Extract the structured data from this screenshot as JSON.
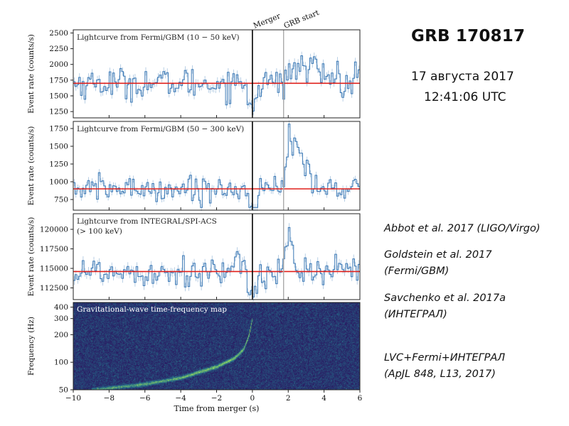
{
  "side_text": {
    "title": "GRB 170817",
    "date": "17 августа 2017",
    "time": "12:41:06 UTC",
    "references": [
      {
        "line1": "Abbot et al. 2017 (LIGO/Virgo)",
        "line2": ""
      },
      {
        "line1": "Goldstein et al. 2017",
        "line2": "(Fermi/GBM)"
      },
      {
        "line1": "Savchenko et al. 2017a",
        "line2": "(ИНТЕГРАЛ)"
      },
      {
        "line1": "LVC+Fermi+ИНТЕГРАЛ",
        "line2": "(ApJL 848, L13, 2017)"
      }
    ]
  },
  "chart_data": {
    "type": "line",
    "xlabel": "Time from merger (s)",
    "xlim": [
      -10,
      6
    ],
    "x_ticks": [
      "−10",
      "−8",
      "−6",
      "−4",
      "−2",
      "0",
      "2",
      "4",
      "6"
    ],
    "markers": [
      {
        "label": "Merger",
        "x": 0,
        "color": "#000000"
      },
      {
        "label": "GRB start",
        "x": 1.74,
        "color": "#aaaaaa"
      }
    ],
    "colors": {
      "data": "#3a78b5",
      "background_fit": "#e0201b",
      "spectrogram_low": "#2a1760",
      "spectrogram_high": "#9be35a"
    },
    "panels": [
      {
        "title": "Lightcurve from Fermi/GBM (10 − 50 keV)",
        "title2": "",
        "ylabel": "Event rate (counts/s)",
        "ylim": [
          1150,
          2550
        ],
        "y_ticks": [
          1250,
          1500,
          1750,
          2000,
          2250,
          2500
        ],
        "y_tick_labels": [
          "1250",
          "1500",
          "1750",
          "2000",
          "2250",
          "2500"
        ],
        "background": 1700,
        "noise": 120,
        "bump": {
          "start": 1.7,
          "peak": 2.5,
          "end": 4.8,
          "amplitude": 250
        }
      },
      {
        "title": "Lightcurve from Fermi/GBM (50 − 300 keV)",
        "title2": "",
        "ylabel": "Event rate (counts/s)",
        "ylim": [
          600,
          1850
        ],
        "y_ticks": [
          750,
          1000,
          1250,
          1500,
          1750
        ],
        "y_tick_labels": [
          "750",
          "1000",
          "1250",
          "1500",
          "1750"
        ],
        "background": 900,
        "noise": 90,
        "bump": {
          "start": 1.7,
          "peak": 2.0,
          "end": 3.3,
          "amplitude": 750
        }
      },
      {
        "title": "Lightcurve from INTEGRAL/SPI-ACS",
        "title2": "(> 100 keV)",
        "ylabel": "Event rate (counts/s)",
        "ylim": [
          111000,
          122000
        ],
        "y_ticks": [
          112500,
          115000,
          117500,
          120000
        ],
        "y_tick_labels": [
          "112500",
          "115000",
          "117500",
          "120000"
        ],
        "background": 114600,
        "noise": 1000,
        "bump": {
          "start": 1.6,
          "peak": 1.9,
          "end": 2.4,
          "amplitude": 4500
        }
      }
    ],
    "spectrogram": {
      "title": "Gravitational-wave time-frequency map",
      "ylabel": "Frequency (Hz)",
      "y_scale": "log",
      "ylim": [
        50,
        450
      ],
      "y_ticks": [
        50,
        100,
        200,
        300,
        400
      ],
      "y_tick_labels": [
        "50",
        "100",
        "200",
        "300",
        "400"
      ],
      "chirp": [
        [
          -9,
          50
        ],
        [
          -6,
          58
        ],
        [
          -4,
          68
        ],
        [
          -2,
          90
        ],
        [
          -1,
          112
        ],
        [
          -0.5,
          140
        ],
        [
          -0.2,
          200
        ],
        [
          -0.02,
          300
        ]
      ]
    }
  }
}
